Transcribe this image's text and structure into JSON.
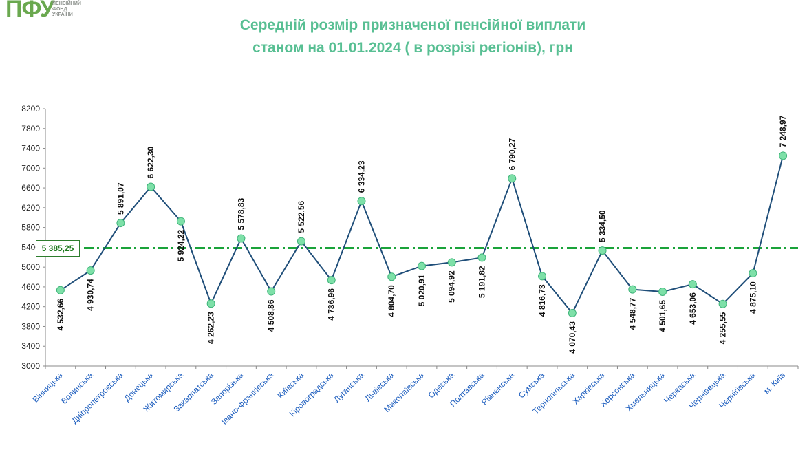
{
  "logo": {
    "mark": "ПФУ",
    "line1": "ПЕНСІЙНИЙ",
    "line2": "ФОНД",
    "line3": "УКРАЇНИ"
  },
  "title": {
    "line1": "Середній розмір призначеної пенсійної виплати",
    "line2": "станом на 01.01.2024 ( в розрізі регіонів), грн"
  },
  "average_label": "5 385,25",
  "colors": {
    "title": "#58bf93",
    "line": "#1f4e79",
    "marker": "#7ee0a8",
    "average": "#1aa33a",
    "axis_labels": "#1f5fbf"
  },
  "chart_data": {
    "type": "line",
    "title": "Середній розмір призначеної пенсійної виплати станом на 01.01.2024 ( в розрізі регіонів), грн",
    "ylim": [
      3000,
      8200
    ],
    "yticks": [
      3000,
      3400,
      3800,
      4200,
      4600,
      5000,
      5400,
      5800,
      6200,
      6600,
      7000,
      7400,
      7800,
      8200
    ],
    "grid": false,
    "average": {
      "value": 5385.25,
      "label": "5 385,25"
    },
    "categories": [
      "Вінницька",
      "Волинська",
      "Дніпропетровська",
      "Донецька",
      "Житомирська",
      "Закарпатська",
      "Запорізька",
      "Івано-Франківська",
      "Київська",
      "Кіровоградська",
      "Луганська",
      "Львівська",
      "Миколаївська",
      "Одеська",
      "Полтавська",
      "Рівненська",
      "Сумська",
      "Тернопільська",
      "Харківська",
      "Херсонська",
      "Хмельницька",
      "Черкаська",
      "Чернівецька",
      "Чернігівська",
      "м. Київ"
    ],
    "values": [
      4532.66,
      4930.74,
      5891.07,
      6622.3,
      5924.22,
      4262.23,
      5578.83,
      4508.86,
      5522.56,
      4736.96,
      6334.23,
      4804.7,
      5020.91,
      5094.92,
      5191.82,
      6790.27,
      4816.73,
      4070.43,
      5334.5,
      4548.77,
      4501.65,
      4653.06,
      4255.55,
      4875.1,
      7248.97
    ],
    "data_labels": [
      "4 532,66",
      "4 930,74",
      "5 891,07",
      "6 622,30",
      "5 924,22",
      "4 262,23",
      "5 578,83",
      "4 508,86",
      "5 522,56",
      "4 736,96",
      "6 334,23",
      "4 804,70",
      "5 020,91",
      "5 094,92",
      "5 191,82",
      "6 790,27",
      "4 816,73",
      "4 070,43",
      "5 334,50",
      "4 548,77",
      "4 501,65",
      "4 653,06",
      "4 255,55",
      "4 875,10",
      "7 248,97"
    ],
    "label_position": [
      "below",
      "below",
      "above",
      "above",
      "below",
      "below",
      "above",
      "below",
      "above",
      "below",
      "above",
      "below",
      "below",
      "below",
      "below",
      "above",
      "below",
      "below",
      "above",
      "below",
      "below",
      "below",
      "below",
      "below",
      "above"
    ]
  }
}
